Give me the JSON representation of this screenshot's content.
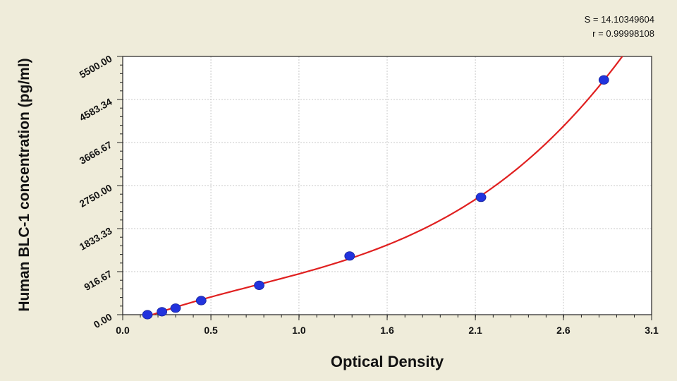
{
  "chart_data": {
    "type": "scatter",
    "xlabel": "Optical Density",
    "ylabel": "Human BLC-1 concentration (pg/ml)",
    "xlim": [
      0.0,
      3.1
    ],
    "ylim": [
      0.0,
      5500.0
    ],
    "x_ticks": [
      "0.0",
      "0.5",
      "1.0",
      "1.6",
      "2.1",
      "2.6",
      "3.1"
    ],
    "x_tick_values": [
      0.0,
      0.517,
      1.033,
      1.55,
      2.067,
      2.583,
      3.1
    ],
    "y_ticks": [
      "0.00",
      "916.67",
      "1833.33",
      "2750.00",
      "3666.67",
      "4583.34",
      "5500.00"
    ],
    "y_tick_values": [
      0.0,
      916.67,
      1833.33,
      2750.0,
      3666.67,
      4583.34,
      5500.0
    ],
    "grid": true,
    "stats": {
      "s": "S = 14.10349604",
      "r": "r = 0.99998108"
    },
    "series": [
      {
        "kind": "points",
        "color": "#2233dd",
        "x": [
          0.145,
          0.23,
          0.31,
          0.46,
          0.8,
          1.33,
          2.1,
          2.82
        ],
        "y": [
          0,
          62.5,
          140,
          300,
          625,
          1250,
          2500,
          5000
        ]
      },
      {
        "kind": "fitted-curve",
        "color": "#e02020"
      }
    ]
  }
}
